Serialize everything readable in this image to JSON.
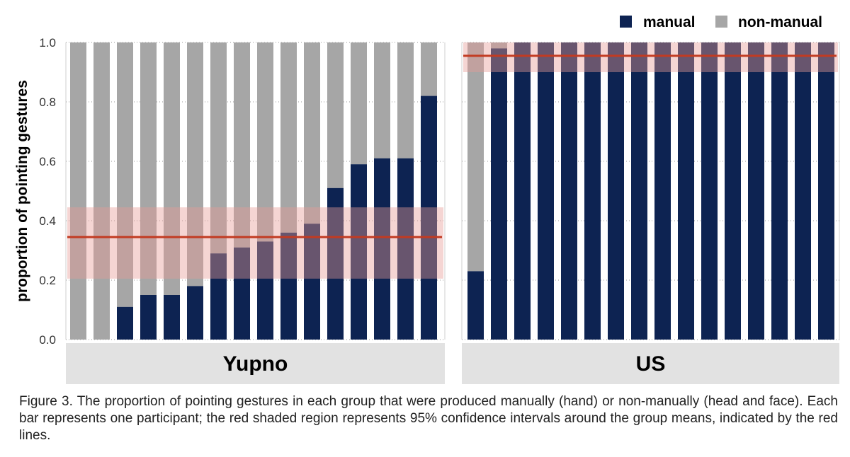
{
  "chart_data": {
    "type": "bar",
    "stacked": true,
    "ylabel": "proportion of pointing gestures",
    "ylim": [
      0,
      1
    ],
    "yticks": [
      "0.0",
      "0.2",
      "0.4",
      "0.6",
      "0.8",
      "1.0"
    ],
    "grid": true,
    "legend_position": "top-right",
    "series": [
      {
        "name": "manual",
        "color": "#0d2352"
      },
      {
        "name": "non-manual",
        "color": "#a6a6a6"
      }
    ],
    "mean_line_color": "#c23b22",
    "ci_band_color": "#e89a95",
    "panels": [
      {
        "label": "Yupno",
        "manual": [
          0.0,
          0.0,
          0.11,
          0.15,
          0.15,
          0.18,
          0.29,
          0.31,
          0.33,
          0.36,
          0.39,
          0.51,
          0.59,
          0.61,
          0.61,
          0.82
        ],
        "mean": 0.345,
        "ci": [
          0.205,
          0.445
        ]
      },
      {
        "label": "US",
        "manual": [
          0.23,
          0.98,
          1.0,
          1.0,
          1.0,
          1.0,
          1.0,
          1.0,
          1.0,
          1.0,
          1.0,
          1.0,
          1.0,
          1.0,
          1.0,
          1.0
        ],
        "mean": 0.955,
        "ci": [
          0.9,
          1.0
        ]
      }
    ]
  },
  "caption": "Figure 3. The proportion of pointing gestures in each group that were produced manually (hand) or non-manually (head and face). Each bar represents one participant; the red shaded region represents 95% confidence intervals around the group means, indicated by the red lines."
}
